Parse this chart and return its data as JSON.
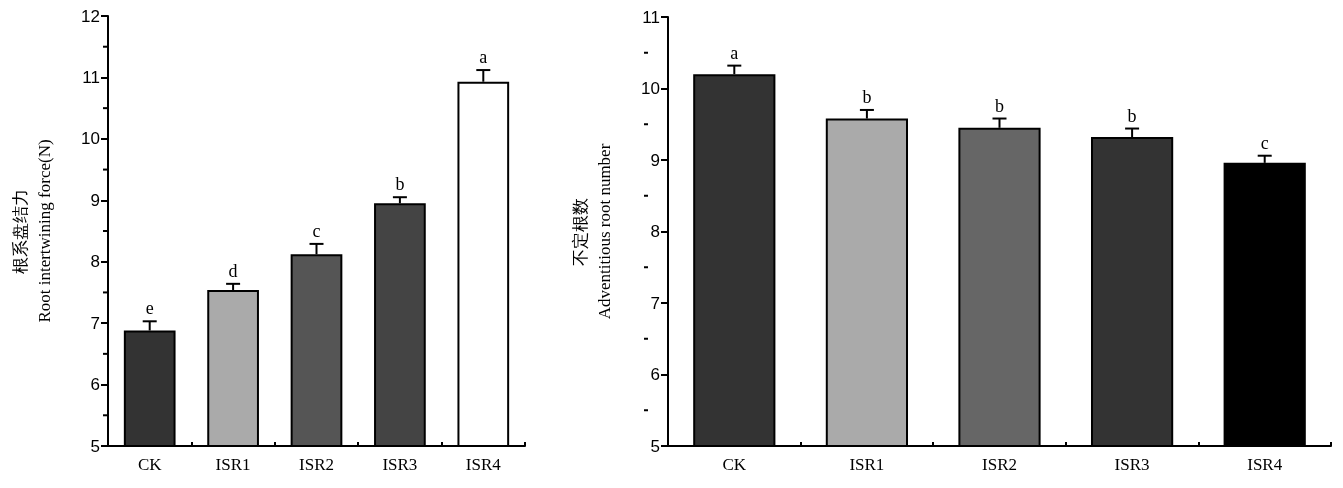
{
  "chart_data": [
    {
      "type": "bar",
      "ylabel": "根系盘结力\nRoot intertwining force(N)",
      "categories": [
        "CK",
        "ISR1",
        "ISR2",
        "ISR3",
        "ISR4"
      ],
      "values": [
        6.88,
        7.54,
        8.12,
        8.95,
        10.93
      ],
      "colors": [
        "#333333",
        "#aaaaaa",
        "#555555",
        "#444444",
        "#ffffff"
      ],
      "errors": [
        [
          6.88,
          7.03
        ],
        [
          7.54,
          7.64
        ],
        [
          8.12,
          8.29
        ],
        [
          8.95,
          9.05
        ],
        [
          10.93,
          11.12
        ]
      ],
      "ylim": [
        5,
        12
      ],
      "yticks": [
        5,
        6,
        7,
        8,
        9,
        10,
        11,
        12
      ],
      "grid": false,
      "annotations": [
        {
          "text": "e",
          "x": "CK",
          "y": 7.03
        },
        {
          "text": "d",
          "x": "ISR1",
          "y": 7.64
        },
        {
          "text": "c",
          "x": "ISR2",
          "y": 8.29
        },
        {
          "text": "b",
          "x": "ISR3",
          "y": 9.05
        },
        {
          "text": "a",
          "x": "ISR4",
          "y": 11.12
        }
      ]
    },
    {
      "type": "bar",
      "ylabel": "不定根数\nAdventitious root number",
      "categories": [
        "CK",
        "ISR1",
        "ISR2",
        "ISR3",
        "ISR4"
      ],
      "values": [
        10.2,
        9.58,
        9.45,
        9.32,
        8.96
      ],
      "colors": [
        "#333333",
        "#aaaaaa",
        "#666666",
        "#333333",
        "#000000"
      ],
      "errors": [
        [
          10.2,
          10.32
        ],
        [
          9.58,
          9.7
        ],
        [
          9.45,
          9.58
        ],
        [
          9.32,
          9.44
        ],
        [
          8.96,
          9.06
        ]
      ],
      "ylim": [
        5,
        11
      ],
      "yticks": [
        5,
        6,
        7,
        8,
        9,
        10,
        11
      ],
      "grid": false,
      "annotations": [
        {
          "text": "a",
          "x": "CK",
          "y": 10.32
        },
        {
          "text": "b",
          "x": "ISR1",
          "y": 9.7
        },
        {
          "text": "b",
          "x": "ISR2",
          "y": 9.58
        },
        {
          "text": "b",
          "x": "ISR3",
          "y": 9.44
        },
        {
          "text": "c",
          "x": "ISR4",
          "y": 9.06
        }
      ]
    }
  ]
}
